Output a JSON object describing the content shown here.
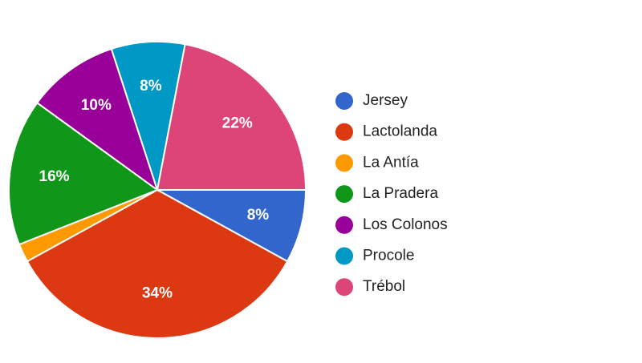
{
  "chart_data": {
    "type": "pie",
    "categories": [
      "Jersey",
      "Lactolanda",
      "La Antía",
      "La Pradera",
      "Los Colonos",
      "Procole",
      "Trébol"
    ],
    "values": [
      8,
      34,
      2,
      16,
      10,
      8,
      22
    ],
    "value_labels": [
      "8%",
      "34%",
      null,
      "16%",
      "10%",
      "8%",
      "22%"
    ],
    "colors": [
      "#3366cc",
      "#dc3912",
      "#ff9900",
      "#109618",
      "#990099",
      "#0099c6",
      "#dd4477"
    ],
    "legend": "right"
  }
}
